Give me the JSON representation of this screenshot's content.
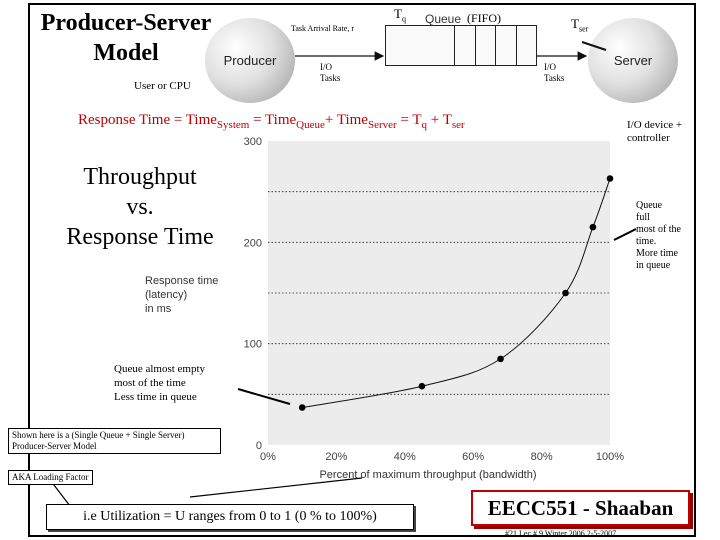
{
  "slide": {
    "title_line1": "Producer-Server",
    "title_line2": "Model",
    "user_or_cpu": "User or CPU",
    "producer_label": "Producer",
    "server_label": "Server",
    "task_arrival": "Task Arrival Rate, r",
    "tq_main": "T",
    "tq_sub": "q",
    "queue_label": "Queue",
    "fifo": "(FIFO)",
    "tser_main": "T",
    "tser_sub": "ser",
    "io_tasks_left_1": "I/O",
    "io_tasks_left_2": "Tasks",
    "io_tasks_right_1": "I/O",
    "io_tasks_right_2": "Tasks",
    "io_device_1": "I/O device +",
    "io_device_2": "controller",
    "response_eq": {
      "p1": "Response Time  =  Time",
      "s1": "System",
      "p2": " = Time",
      "s2": "Queue",
      "p3": "+  Time",
      "s3": "Server",
      "p4": " =  T",
      "s4": "q",
      "p5": " + T",
      "s5": "ser"
    },
    "big_line1": "Throughput",
    "big_line2": "vs.",
    "big_line3": "Response Time",
    "queue_full": [
      "Queue",
      "full",
      "most of the",
      "time.",
      "More time",
      "in queue"
    ],
    "queue_empty": [
      "Queue almost empty",
      "most of the time",
      "Less time in queue"
    ],
    "shown_here": [
      "Shown here is a (Single Queue + Single Server)",
      "Producer-Server Model"
    ],
    "aka": "AKA Loading Factor",
    "utilization": "i.e Utilization = U  ranges from 0 to 1  (0 % to 100%)",
    "course": "EECC551 - Shaaban",
    "footer": "#21   Lec # 9   Winter 2006  2-5-2007"
  },
  "chart_data": {
    "type": "line",
    "ylabel_lines": [
      "Response time",
      "(latency)",
      "in ms"
    ],
    "xlabel": "Percent of maximum throughput (bandwidth)",
    "xlim": [
      0,
      100
    ],
    "ylim": [
      0,
      300
    ],
    "x_ticks": [
      "0%",
      "20%",
      "40%",
      "60%",
      "80%",
      "100%"
    ],
    "y_ticks": [
      "0",
      "100",
      "200",
      "300"
    ],
    "x": [
      10,
      45,
      68,
      87,
      95,
      100
    ],
    "y": [
      37,
      58,
      85,
      150,
      215,
      263
    ],
    "grid": "horizontal dotted"
  },
  "colors": {
    "accent_red": "#c00000",
    "plot_bg": "#ececec"
  }
}
